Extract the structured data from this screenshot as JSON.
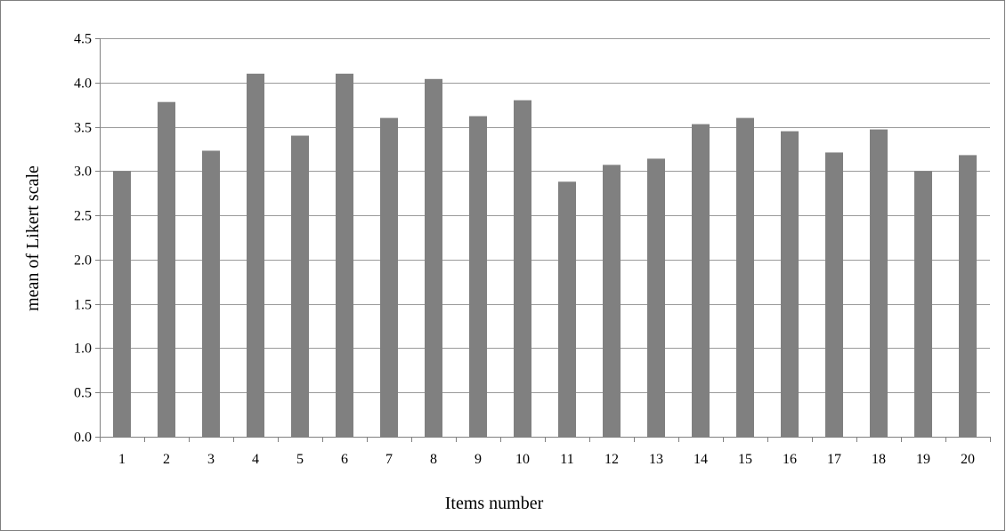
{
  "chart_data": {
    "type": "bar",
    "categories": [
      "1",
      "2",
      "3",
      "4",
      "5",
      "6",
      "7",
      "8",
      "9",
      "10",
      "11",
      "12",
      "13",
      "14",
      "15",
      "16",
      "17",
      "18",
      "19",
      "20"
    ],
    "values": [
      3.0,
      3.78,
      3.23,
      4.1,
      3.4,
      4.1,
      3.6,
      4.04,
      3.62,
      3.8,
      2.88,
      3.07,
      3.14,
      3.53,
      3.6,
      3.45,
      3.21,
      3.47,
      3.0,
      3.18
    ],
    "title": "",
    "xlabel": "Items number",
    "ylabel": "mean  of Likert  scale",
    "ylim": [
      0,
      4.5
    ],
    "yticks": [
      "0.0",
      "0.5",
      "1.0",
      "1.5",
      "2.0",
      "2.5",
      "3.0",
      "3.5",
      "4.0",
      "4.5"
    ],
    "grid": "horizontal",
    "legend": "none",
    "colors": {
      "bar": "#808080",
      "grid": "#9a9a9a",
      "axis": "#808080",
      "frame": "#7f7f7f"
    }
  }
}
